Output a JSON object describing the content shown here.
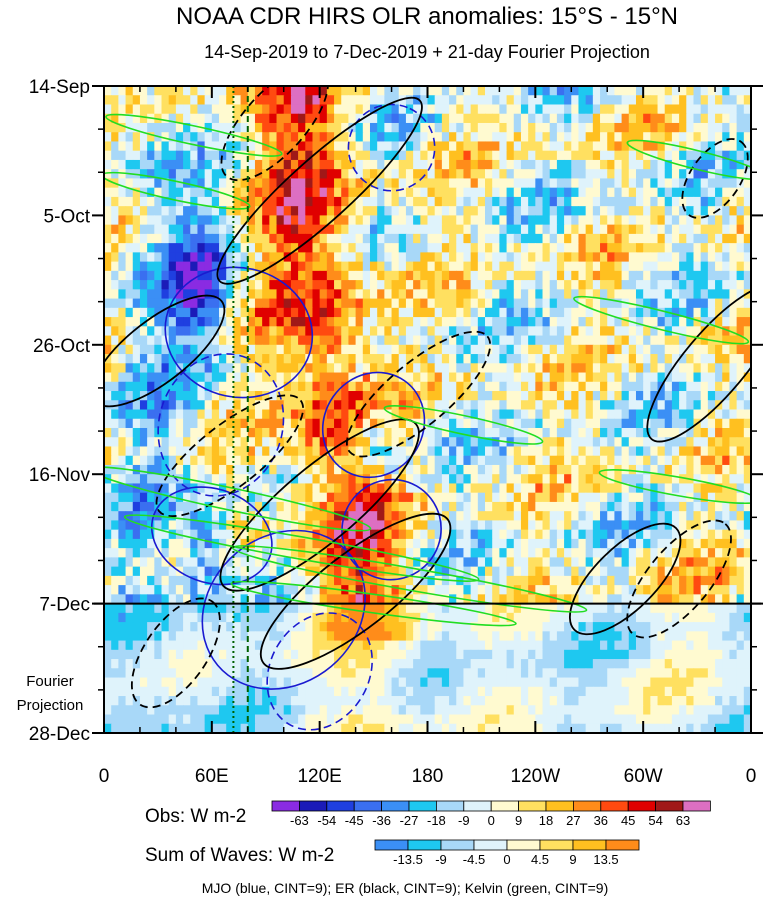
{
  "chart_data": {
    "type": "heatmap",
    "title": "NOAA CDR HIRS OLR anomalies: 15°S - 15°N",
    "subtitle": "14-Sep-2019 to 7-Dec-2019 + 21-day Fourier Projection",
    "x_ticks": [
      {
        "label": "0",
        "lon": 0
      },
      {
        "label": "60E",
        "lon": 60
      },
      {
        "label": "120E",
        "lon": 120
      },
      {
        "label": "180",
        "lon": 180
      },
      {
        "label": "120W",
        "lon": 240
      },
      {
        "label": "60W",
        "lon": 300
      },
      {
        "label": "0",
        "lon": 360
      }
    ],
    "xlim": [
      0,
      360
    ],
    "y_ticks": [
      {
        "label": "14-Sep",
        "day": 0
      },
      {
        "label": "5-Oct",
        "day": 21
      },
      {
        "label": "26-Oct",
        "day": 42
      },
      {
        "label": "16-Nov",
        "day": 63
      },
      {
        "label": "7-Dec",
        "day": 84
      },
      {
        "label": "28-Dec",
        "day": 105
      }
    ],
    "ylim": [
      0,
      105
    ],
    "observation_end_day": 84,
    "projection_label_line1": "Fourier",
    "projection_label_line2": "Projection",
    "obs_colorbar": {
      "label": "Obs: W m-2",
      "ticks": [
        "-63",
        "-54",
        "-45",
        "-36",
        "-27",
        "-18",
        "-9",
        "0",
        "9",
        "18",
        "27",
        "36",
        "45",
        "54",
        "63"
      ],
      "colors": [
        "#8a2be2",
        "#1b1bb8",
        "#1f3fe0",
        "#3a6ff0",
        "#3b8ff5",
        "#1ec8f0",
        "#a8d8f8",
        "#dff3fb",
        "#fffad0",
        "#ffe060",
        "#ffc020",
        "#ff8c1a",
        "#ff4a10",
        "#e00000",
        "#a01818",
        "#dd6fc2"
      ]
    },
    "waves_colorbar": {
      "label": "Sum of Waves: W m-2",
      "ticks": [
        "-13.5",
        "-9",
        "-4.5",
        "0",
        "4.5",
        "9",
        "13.5"
      ],
      "colors": [
        "#3b8ff5",
        "#1ec8f0",
        "#a8d8f8",
        "#dff3fb",
        "#fffad0",
        "#ffe060",
        "#ffc020",
        "#ff8c1a"
      ]
    },
    "footnote": "MJO (blue, CINT=9); ER (black, CINT=9); Kelvin (green, CINT=9)",
    "series": [
      {
        "name": "MJO",
        "color": "#1a1ad0"
      },
      {
        "name": "ER",
        "color": "#000000"
      },
      {
        "name": "Kelvin",
        "color": "#22dd22"
      }
    ],
    "reference_lines": [
      {
        "lon": 72,
        "style": "dotted",
        "color": "#006000"
      },
      {
        "lon": 80,
        "style": "dashed",
        "color": "#006000"
      }
    ],
    "mjo_contours": [
      {
        "lon": 75,
        "day": 40,
        "rx": 36,
        "ry": 12,
        "angle": -78,
        "dash": false
      },
      {
        "lon": 60,
        "day": 73,
        "rx": 26,
        "ry": 10,
        "angle": -70,
        "dash": false
      },
      {
        "lon": 100,
        "day": 85,
        "rx": 48,
        "ry": 12,
        "angle": -40,
        "dash": false
      },
      {
        "lon": 150,
        "day": 55,
        "rx": 30,
        "ry": 8,
        "angle": -55,
        "dash": false
      },
      {
        "lon": 160,
        "day": 72,
        "rx": 28,
        "ry": 8,
        "angle": -60,
        "dash": false
      },
      {
        "lon": 65,
        "day": 55,
        "rx": 40,
        "ry": 10,
        "angle": -72,
        "dash": true
      },
      {
        "lon": 120,
        "day": 95,
        "rx": 34,
        "ry": 8,
        "angle": -60,
        "dash": true
      },
      {
        "lon": 160,
        "day": 10,
        "rx": 24,
        "ry": 7,
        "angle": -65,
        "dash": true
      }
    ],
    "er_contours": [
      {
        "lon": 120,
        "day": 17,
        "rx": 75,
        "ry": 5,
        "angle": -42,
        "dash": false
      },
      {
        "lon": 120,
        "day": 68,
        "rx": 70,
        "ry": 6,
        "angle": -40,
        "dash": false
      },
      {
        "lon": 30,
        "day": 43,
        "rx": 45,
        "ry": 5,
        "angle": -38,
        "dash": false
      },
      {
        "lon": 290,
        "day": 80,
        "rx": 40,
        "ry": 5,
        "angle": -45,
        "dash": false
      },
      {
        "lon": 340,
        "day": 45,
        "rx": 55,
        "ry": 5,
        "angle": -50,
        "dash": false
      },
      {
        "lon": 140,
        "day": 82,
        "rx": 65,
        "ry": 6,
        "angle": -38,
        "dash": false
      },
      {
        "lon": 95,
        "day": 6,
        "rx": 40,
        "ry": 5,
        "angle": -48,
        "dash": true
      },
      {
        "lon": 70,
        "day": 60,
        "rx": 50,
        "ry": 5,
        "angle": -38,
        "dash": true
      },
      {
        "lon": 40,
        "day": 92,
        "rx": 35,
        "ry": 5,
        "angle": -55,
        "dash": true
      },
      {
        "lon": 175,
        "day": 50,
        "rx": 50,
        "ry": 5,
        "angle": -40,
        "dash": true
      },
      {
        "lon": 320,
        "day": 80,
        "rx": 40,
        "ry": 5,
        "angle": -50,
        "dash": true
      },
      {
        "lon": 340,
        "day": 15,
        "rx": 25,
        "ry": 4,
        "angle": -55,
        "dash": true
      }
    ],
    "kelvin_contours": [
      {
        "lon": 50,
        "day": 8,
        "rx": 50,
        "ry": 1.5,
        "angle": 12,
        "dash": false
      },
      {
        "lon": 40,
        "day": 17,
        "rx": 42,
        "ry": 1.5,
        "angle": 12,
        "dash": false
      },
      {
        "lon": 70,
        "day": 67,
        "rx": 80,
        "ry": 1.8,
        "angle": 12,
        "dash": false
      },
      {
        "lon": 170,
        "day": 80,
        "rx": 100,
        "ry": 1.8,
        "angle": 10,
        "dash": false
      },
      {
        "lon": 110,
        "day": 75,
        "rx": 100,
        "ry": 1.8,
        "angle": 10,
        "dash": false
      },
      {
        "lon": 150,
        "day": 84,
        "rx": 80,
        "ry": 1.5,
        "angle": 8,
        "dash": false
      },
      {
        "lon": 310,
        "day": 38,
        "rx": 50,
        "ry": 1.5,
        "angle": 14,
        "dash": false
      },
      {
        "lon": 320,
        "day": 65,
        "rx": 45,
        "ry": 1.5,
        "angle": 10,
        "dash": false
      },
      {
        "lon": 330,
        "day": 12,
        "rx": 40,
        "ry": 1.5,
        "angle": 14,
        "dash": false
      },
      {
        "lon": 200,
        "day": 55,
        "rx": 45,
        "ry": 1.5,
        "angle": 12,
        "dash": false
      }
    ]
  }
}
